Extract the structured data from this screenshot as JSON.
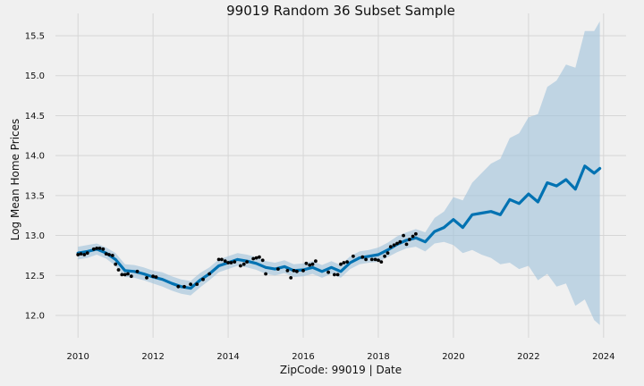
{
  "chart_data": {
    "type": "line",
    "title": "99019 Random 36 Subset Sample",
    "xlabel": "ZipCode: 99019 | Date",
    "ylabel": "Log Mean Home Prices",
    "xlim": [
      2009.4,
      2024.6
    ],
    "ylim": [
      11.72,
      15.78
    ],
    "x_ticks": [
      2010,
      2012,
      2014,
      2016,
      2018,
      2020,
      2022,
      2024
    ],
    "x_tick_labels": [
      "2010",
      "2012",
      "2014",
      "2016",
      "2018",
      "2020",
      "2022",
      "2024"
    ],
    "y_ticks": [
      12.0,
      12.5,
      13.0,
      13.5,
      14.0,
      14.5,
      15.0,
      15.5
    ],
    "y_tick_labels": [
      "12.0",
      "12.5",
      "13.0",
      "13.5",
      "14.0",
      "14.5",
      "15.0",
      "15.5"
    ],
    "grid": true,
    "colors": {
      "forecast": "#0072b2",
      "band": "#9ec2db",
      "points": "#000000",
      "background": "#f0f0f0"
    },
    "forecast": {
      "x": [
        2010.0,
        2010.25,
        2010.5,
        2010.75,
        2011.0,
        2011.25,
        2011.5,
        2011.75,
        2012.0,
        2012.25,
        2012.5,
        2012.75,
        2013.0,
        2013.25,
        2013.5,
        2013.75,
        2014.0,
        2014.25,
        2014.5,
        2014.75,
        2015.0,
        2015.25,
        2015.5,
        2015.75,
        2016.0,
        2016.25,
        2016.5,
        2016.75,
        2017.0,
        2017.25,
        2017.5,
        2017.75,
        2018.0,
        2018.25,
        2018.5,
        2018.75,
        2019.0,
        2019.25,
        2019.5,
        2019.75,
        2020.0,
        2020.25,
        2020.5,
        2020.75,
        2021.0,
        2021.25,
        2021.5,
        2021.75,
        2022.0,
        2022.25,
        2022.5,
        2022.75,
        2023.0,
        2023.25,
        2023.5,
        2023.75,
        2023.9
      ],
      "yhat": [
        12.78,
        12.8,
        12.83,
        12.78,
        12.7,
        12.56,
        12.55,
        12.52,
        12.48,
        12.45,
        12.4,
        12.36,
        12.34,
        12.44,
        12.52,
        12.62,
        12.66,
        12.7,
        12.68,
        12.65,
        12.6,
        12.58,
        12.61,
        12.56,
        12.57,
        12.6,
        12.55,
        12.6,
        12.55,
        12.66,
        12.72,
        12.74,
        12.76,
        12.82,
        12.89,
        12.94,
        12.97,
        12.92,
        13.05,
        13.1,
        13.2,
        13.1,
        13.26,
        13.28,
        13.3,
        13.26,
        13.45,
        13.4,
        13.52,
        13.42,
        13.66,
        13.62,
        13.7,
        13.58,
        13.87,
        13.78,
        13.84
      ],
      "lower": [
        12.7,
        12.72,
        12.76,
        12.71,
        12.62,
        12.48,
        12.47,
        12.44,
        12.4,
        12.36,
        12.31,
        12.27,
        12.25,
        12.35,
        12.44,
        12.54,
        12.58,
        12.62,
        12.6,
        12.57,
        12.52,
        12.5,
        12.53,
        12.48,
        12.49,
        12.52,
        12.47,
        12.52,
        12.47,
        12.58,
        12.64,
        12.66,
        12.67,
        12.73,
        12.79,
        12.84,
        12.86,
        12.8,
        12.9,
        12.92,
        12.88,
        12.78,
        12.82,
        12.76,
        12.72,
        12.64,
        12.66,
        12.58,
        12.62,
        12.44,
        12.52,
        12.36,
        12.4,
        12.12,
        12.2,
        11.94,
        11.88
      ],
      "upper": [
        12.86,
        12.88,
        12.9,
        12.85,
        12.78,
        12.64,
        12.63,
        12.6,
        12.56,
        12.54,
        12.49,
        12.45,
        12.43,
        12.53,
        12.6,
        12.7,
        12.74,
        12.78,
        12.76,
        12.73,
        12.68,
        12.66,
        12.69,
        12.64,
        12.65,
        12.68,
        12.63,
        12.68,
        12.63,
        12.74,
        12.8,
        12.82,
        12.85,
        12.91,
        12.99,
        13.04,
        13.08,
        13.04,
        13.22,
        13.3,
        13.48,
        13.44,
        13.66,
        13.78,
        13.9,
        13.96,
        14.22,
        14.28,
        14.48,
        14.52,
        14.86,
        14.94,
        15.14,
        15.1,
        15.56,
        15.56,
        15.68
      ]
    },
    "observations": {
      "x": [
        2010.0,
        2010.08,
        2010.17,
        2010.25,
        2010.42,
        2010.5,
        2010.58,
        2010.67,
        2010.75,
        2010.83,
        2010.92,
        2011.0,
        2011.08,
        2011.17,
        2011.25,
        2011.33,
        2011.42,
        2011.58,
        2011.83,
        2012.0,
        2012.08,
        2012.67,
        2012.83,
        2013.0,
        2013.17,
        2013.33,
        2013.5,
        2013.75,
        2013.83,
        2013.92,
        2014.0,
        2014.08,
        2014.17,
        2014.33,
        2014.42,
        2014.5,
        2014.67,
        2014.75,
        2014.83,
        2014.92,
        2015.0,
        2015.33,
        2015.58,
        2015.67,
        2015.75,
        2015.83,
        2016.0,
        2016.08,
        2016.17,
        2016.25,
        2016.33,
        2016.67,
        2016.83,
        2016.92,
        2017.0,
        2017.08,
        2017.17,
        2017.33,
        2017.58,
        2017.67,
        2017.83,
        2017.92,
        2018.0,
        2018.08,
        2018.17,
        2018.25,
        2018.33,
        2018.42,
        2018.5,
        2018.58,
        2018.67,
        2018.75,
        2018.83,
        2018.92,
        2019.0
      ],
      "y": [
        12.76,
        12.77,
        12.76,
        12.78,
        12.83,
        12.84,
        12.84,
        12.83,
        12.77,
        12.76,
        12.75,
        12.64,
        12.57,
        12.51,
        12.51,
        12.52,
        12.49,
        12.55,
        12.47,
        12.49,
        12.48,
        12.36,
        12.36,
        12.39,
        12.39,
        12.45,
        12.52,
        12.7,
        12.7,
        12.68,
        12.66,
        12.66,
        12.67,
        12.62,
        12.64,
        12.67,
        12.71,
        12.72,
        12.73,
        12.69,
        12.52,
        12.58,
        12.56,
        12.47,
        12.56,
        12.55,
        12.56,
        12.65,
        12.63,
        12.64,
        12.68,
        12.54,
        12.51,
        12.51,
        12.64,
        12.66,
        12.67,
        12.74,
        12.73,
        12.7,
        12.7,
        12.7,
        12.69,
        12.67,
        12.74,
        12.78,
        12.86,
        12.88,
        12.9,
        12.92,
        13.0,
        12.89,
        12.95,
        12.99,
        13.02
      ]
    }
  }
}
